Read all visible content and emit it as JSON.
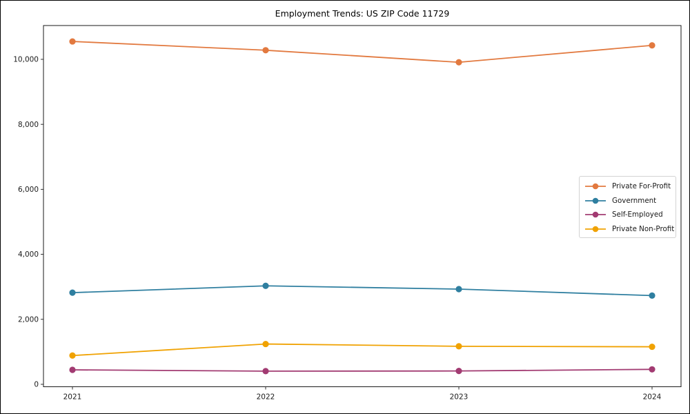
{
  "chart_data": {
    "type": "line",
    "title": "Employment Trends: US ZIP Code 11729",
    "x": [
      2021,
      2022,
      2023,
      2024
    ],
    "x_tick_labels": [
      "2021",
      "2022",
      "2023",
      "2024"
    ],
    "series": [
      {
        "name": "Private For-Profit",
        "color": "#E2793F",
        "values": [
          10550,
          10280,
          9910,
          10430
        ]
      },
      {
        "name": "Government",
        "color": "#2F7FA0",
        "values": [
          2820,
          3030,
          2930,
          2730
        ]
      },
      {
        "name": "Self-Employed",
        "color": "#A23B72",
        "values": [
          445,
          405,
          410,
          460
        ]
      },
      {
        "name": "Private Non-Profit",
        "color": "#F0A202",
        "values": [
          885,
          1240,
          1170,
          1155
        ]
      }
    ],
    "xlim": [
      2020.85,
      2024.15
    ],
    "ylim": [
      -75,
      11040
    ],
    "y_ticks": [
      0,
      2000,
      4000,
      6000,
      8000,
      10000
    ],
    "y_tick_labels": [
      "0",
      "2,000",
      "4,000",
      "6,000",
      "8,000",
      "10,000"
    ],
    "grid": false,
    "marker": "circle",
    "legend": {
      "position": "center-right",
      "entries": [
        "Private For-Profit",
        "Government",
        "Self-Employed",
        "Private Non-Profit"
      ]
    }
  }
}
